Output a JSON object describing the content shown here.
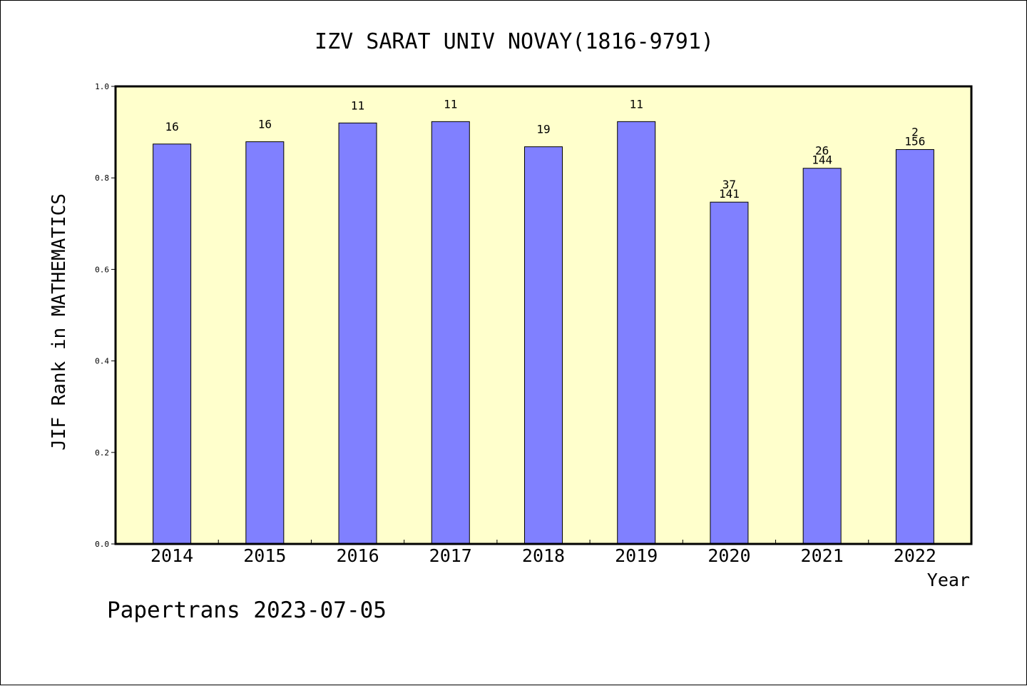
{
  "chart_data": {
    "type": "bar",
    "title": "IZV SARAT UNIV NOVAY(1816-9791)",
    "xlabel": "Year",
    "ylabel": "JIF Rank in MATHEMATICS",
    "ylim": [
      0,
      1.0
    ],
    "yticks": [
      "0.0",
      "0.2",
      "0.4",
      "0.6",
      "0.8",
      "1.0"
    ],
    "categories": [
      "2014",
      "2015",
      "2016",
      "2017",
      "2018",
      "2019",
      "2020",
      "2021",
      "2022"
    ],
    "values": [
      0.874,
      0.879,
      0.92,
      0.923,
      0.868,
      0.923,
      0.747,
      0.821,
      0.862
    ],
    "bar_labels": [
      [
        "16"
      ],
      [
        "16"
      ],
      [
        "11"
      ],
      [
        "11"
      ],
      [
        "19"
      ],
      [
        "11"
      ],
      [
        "37",
        "141"
      ],
      [
        "26",
        "144"
      ],
      [
        "2",
        "156"
      ]
    ],
    "grid": false,
    "colors": {
      "plot_background": "#ffffcc",
      "bar_fill": "#8080ff",
      "bar_stroke": "#000000"
    }
  },
  "footer": {
    "text": "Papertrans 2023-07-05"
  }
}
